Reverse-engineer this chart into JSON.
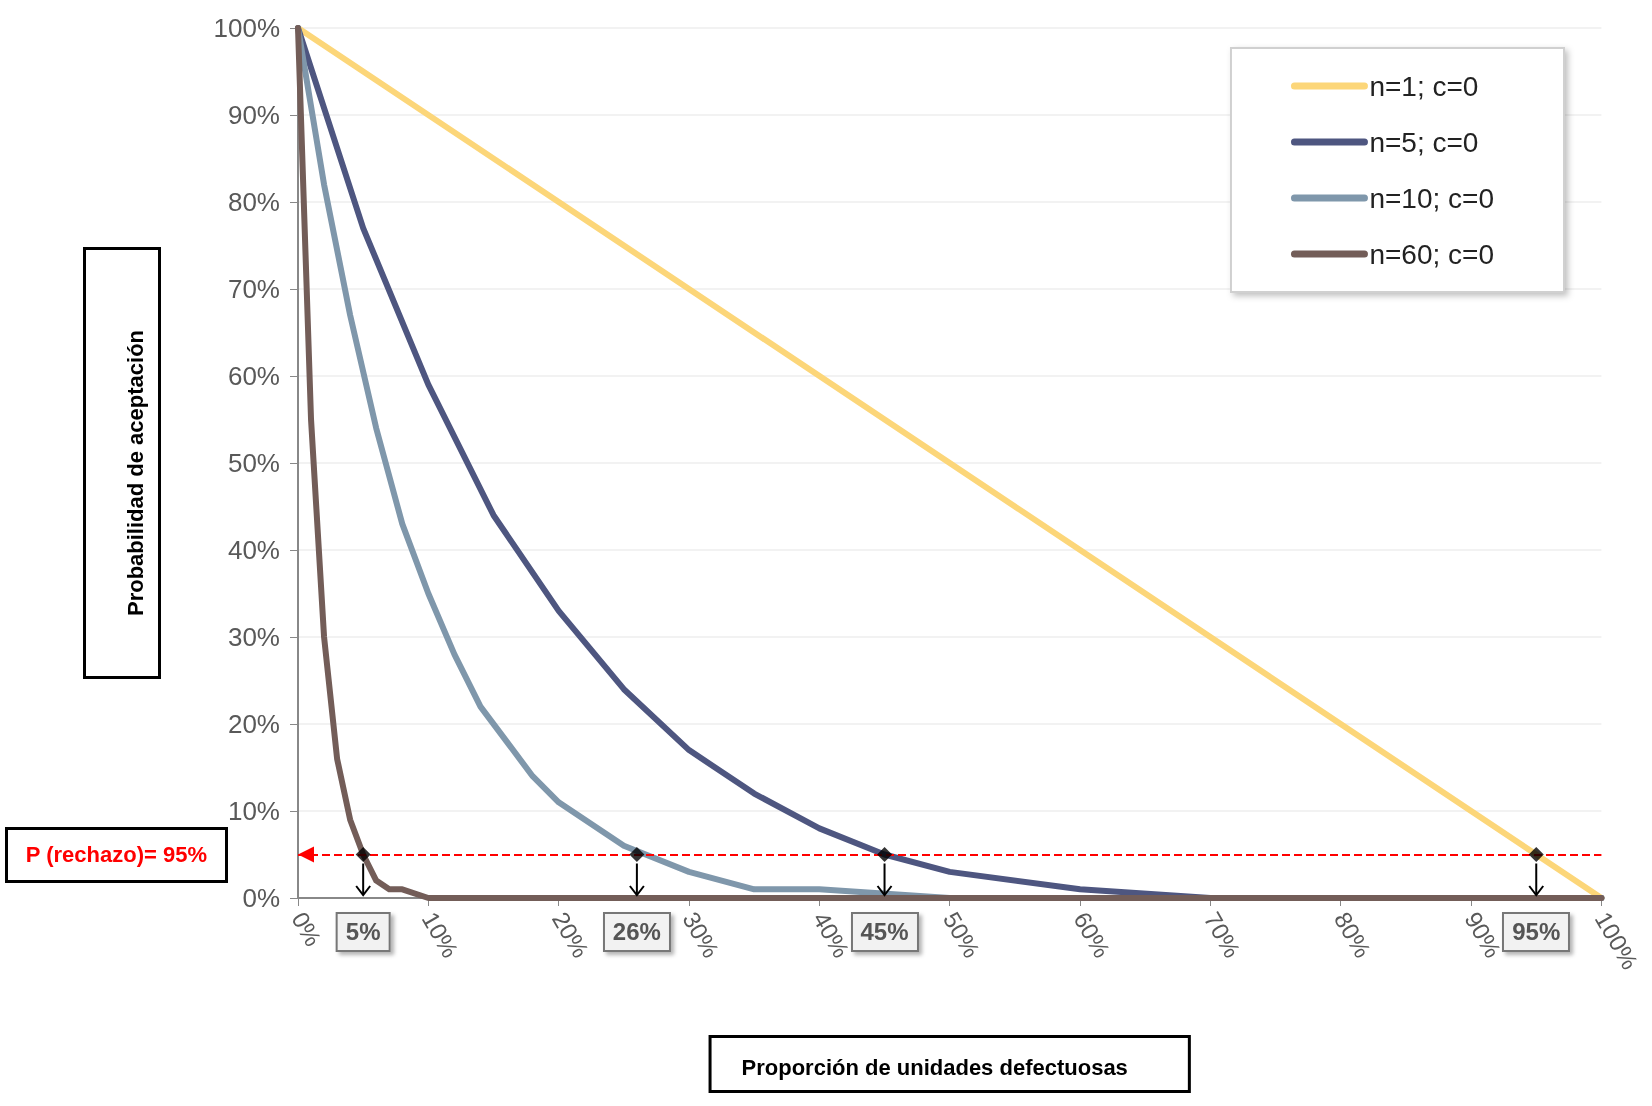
{
  "chart_data": {
    "type": "line",
    "xlabel": "Proporción de unidades defectuosas",
    "ylabel": "Probabilidad de aceptación",
    "xlim": [
      0,
      100
    ],
    "ylim": [
      0,
      100
    ],
    "xticks": [
      {
        "value": 0,
        "label": "0%"
      },
      {
        "value": 10,
        "label": "10%"
      },
      {
        "value": 20,
        "label": "20%"
      },
      {
        "value": 30,
        "label": "30%"
      },
      {
        "value": 40,
        "label": "40%"
      },
      {
        "value": 50,
        "label": "50%"
      },
      {
        "value": 60,
        "label": "60%"
      },
      {
        "value": 70,
        "label": "70%"
      },
      {
        "value": 80,
        "label": "80%"
      },
      {
        "value": 90,
        "label": "90%"
      },
      {
        "value": 100,
        "label": "100%"
      }
    ],
    "yticks": [
      {
        "value": 0,
        "label": "0%"
      },
      {
        "value": 10,
        "label": "10%"
      },
      {
        "value": 20,
        "label": "20%"
      },
      {
        "value": 30,
        "label": "30%"
      },
      {
        "value": 40,
        "label": "40%"
      },
      {
        "value": 50,
        "label": "50%"
      },
      {
        "value": 60,
        "label": "60%"
      },
      {
        "value": 70,
        "label": "70%"
      },
      {
        "value": 80,
        "label": "80%"
      },
      {
        "value": 90,
        "label": "90%"
      },
      {
        "value": 100,
        "label": "100%"
      }
    ],
    "grid": "y",
    "legend": "top right",
    "marker": "none",
    "line_style": "solid",
    "series": [
      {
        "name": "n=1; c=0",
        "color": "#fcd679",
        "x": [
          0,
          100
        ],
        "values": [
          100,
          0
        ]
      },
      {
        "name": "n=5; c=0",
        "color": "#4e5680",
        "x": [
          0,
          5,
          10,
          15,
          20,
          25,
          30,
          35,
          40,
          45,
          50,
          60,
          70,
          80,
          100
        ],
        "values": [
          100,
          77,
          59,
          44,
          33,
          24,
          17,
          12,
          8,
          5,
          3,
          1,
          0,
          0,
          0
        ]
      },
      {
        "name": "n=10; c=0",
        "color": "#7f97ab",
        "x": [
          0,
          2,
          4,
          6,
          8,
          10,
          12,
          14,
          16,
          18,
          20,
          25,
          30,
          35,
          40,
          50,
          60,
          100
        ],
        "values": [
          100,
          82,
          67,
          54,
          43,
          35,
          28,
          22,
          18,
          14,
          11,
          6,
          3,
          1,
          1,
          0,
          0,
          0
        ]
      },
      {
        "name": "n=60; c=0",
        "color": "#735d58",
        "x": [
          0,
          1,
          2,
          3,
          4,
          5,
          6,
          7,
          8,
          10,
          15,
          100
        ],
        "values": [
          100,
          55,
          30,
          16,
          9,
          5,
          2,
          1,
          1,
          0,
          0,
          0
        ]
      },
      {
        "type": "scatter",
        "marker": "diamond",
        "color": "#000000",
        "x": [
          5,
          26,
          45,
          95
        ],
        "values": [
          5,
          5,
          5,
          5
        ]
      }
    ],
    "ref_lines": [
      {
        "axis": "y",
        "value": 5,
        "color": "#ff0000",
        "line_style": "dashed"
      }
    ],
    "annotations": [
      "P (rechazo)= 95%",
      {
        "text": "5%",
        "x": 5,
        "y": 5
      },
      {
        "text": "26%",
        "x": 26,
        "y": 5
      },
      {
        "text": "45%",
        "x": 45,
        "y": 5
      },
      {
        "text": "95%",
        "x": 95,
        "y": 5
      }
    ]
  }
}
